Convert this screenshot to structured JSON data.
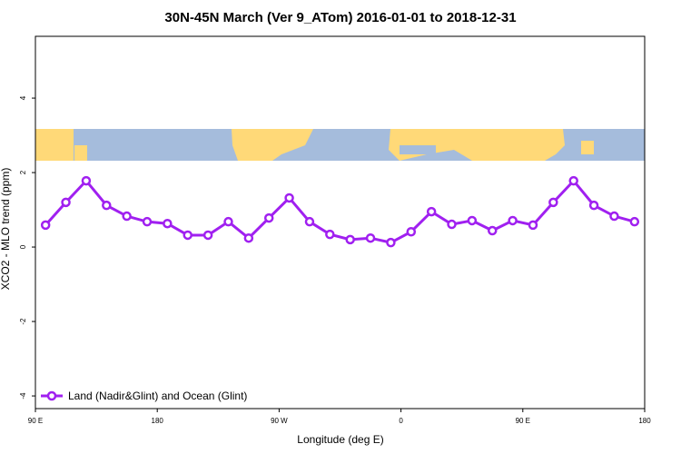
{
  "chart_data": {
    "type": "line",
    "title": "30N-45N March (Ver 9_ATom)   2016-01-01 to 2018-12-31",
    "x_label": "Longitude (deg E)",
    "y_label": "XCO2 - MLO trend (ppm)",
    "x": [
      97.5,
      112.5,
      127.5,
      142.5,
      157.5,
      172.5,
      187.5,
      202.5,
      217.5,
      232.5,
      247.5,
      262.5,
      277.5,
      292.5,
      307.5,
      322.5,
      337.5,
      352.5,
      367.5,
      382.5,
      397.5,
      412.5,
      427.5,
      442.5,
      457.5,
      472.5,
      487.5,
      502.5,
      517.5,
      532.5
    ],
    "series": [
      {
        "name": "Land (Nadir&Glint) and Ocean (Glint)",
        "color": "#a020f0",
        "values": [
          0.59,
          1.2,
          1.78,
          1.12,
          0.83,
          0.68,
          0.63,
          0.32,
          0.32,
          0.68,
          0.24,
          0.78,
          1.32,
          0.68,
          0.34,
          0.2,
          0.24,
          0.12,
          0.41,
          0.95,
          0.61,
          0.71,
          0.44,
          0.71,
          0.59,
          1.2,
          1.78,
          1.12,
          0.83,
          0.68
        ]
      }
    ],
    "xlim": [
      90,
      540
    ],
    "xticks": [
      {
        "value": 90,
        "label": "90 E"
      },
      180,
      {
        "value": 270,
        "label": "90 W"
      },
      {
        "value": 360,
        "label": "0"
      },
      {
        "value": 450,
        "label": "90 E"
      },
      {
        "value": 540,
        "label": "180"
      }
    ],
    "ylim": [
      -4.34,
      5.66
    ],
    "yticks": [
      4,
      2,
      0,
      -2,
      -4
    ],
    "legend": "bottom-left"
  }
}
